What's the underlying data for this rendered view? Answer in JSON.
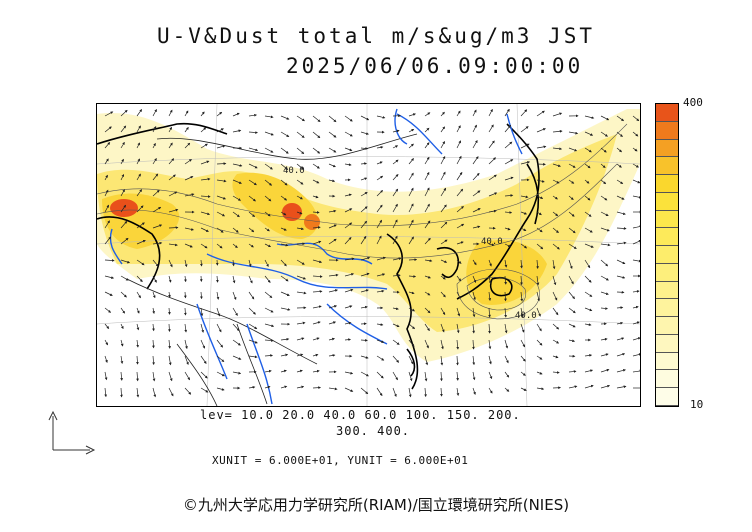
{
  "header": {
    "title_line1": "U-V&Dust total m/s&ug/m3 JST",
    "title_line2": "2025/06/06.09:00:00"
  },
  "colorbar": {
    "max_label": "400",
    "min_label": "10",
    "colors_top_to_bottom": [
      "#e8541a",
      "#ef7a1c",
      "#f4a023",
      "#f8c22b",
      "#fad72d",
      "#fbe23b",
      "#fce74c",
      "#fdea5a",
      "#fded6b",
      "#fdef7c",
      "#fef18c",
      "#fef39d",
      "#fef5ae",
      "#fef7bf",
      "#fefad0",
      "#fefcdf",
      "#fefde8"
    ]
  },
  "map": {
    "contour_labels": [
      "40.0",
      "40.0",
      "40.0"
    ],
    "colors": {
      "dust_low": "#fdf6c6",
      "dust_mid": "#fce774",
      "dust_high": "#fad53a",
      "dust_peak": "#e9501b",
      "rivers": "#1f5fe6",
      "coast": "#000000"
    }
  },
  "footer": {
    "lev_line1": "lev= 10.0 20.0 40.0 60.0 100. 150. 200.",
    "lev_line2": "300. 400.",
    "unit_line": "XUNIT = 6.000E+01, YUNIT = 6.000E+01",
    "credit": "©九州大学応用力学研究所(RIAM)/国立環境研究所(NIES)"
  }
}
